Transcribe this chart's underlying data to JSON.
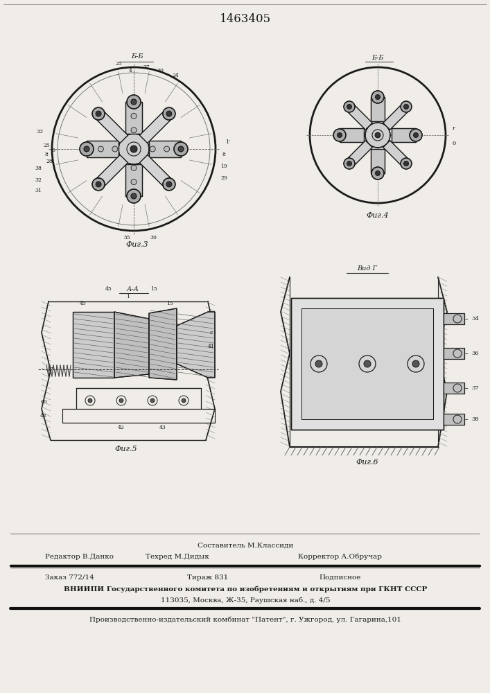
{
  "patent_number": "1463405",
  "bg": "#f0ede8",
  "lc": "#1a1a1a",
  "fig3_caption": "Фиг.3",
  "fig4_caption": "Фиг.4",
  "fig5_caption": "Фиг.5",
  "fig6_caption": "Фиг.6",
  "footer_sestavitel": "Составитель М.Классиди",
  "footer_redaktor": "Редактор В.Данко",
  "footer_tehred": "Техред М.Дидык",
  "footer_korrektor": "Корректор А.Обручар",
  "footer_zakaz": "Заказ 772/14",
  "footer_tirazh": "Тираж 831",
  "footer_podpisnoe": "Подписное",
  "footer_vnipi": "ВНИИПИ Государственного комитета по изобретениям и открытиям при ГКНТ СССР",
  "footer_addr": "113035, Москва, Ж-35, Раушская наб., д. 4/5",
  "footer_kombnat": "Производственно-издательский комбинат \"Патент\", г. Ужгород, ул. Гагарина,101",
  "section_bb": "Б-Б",
  "section_bb2": "Б-Б",
  "section_aa": "А-А",
  "vid_g": "Вид Г"
}
